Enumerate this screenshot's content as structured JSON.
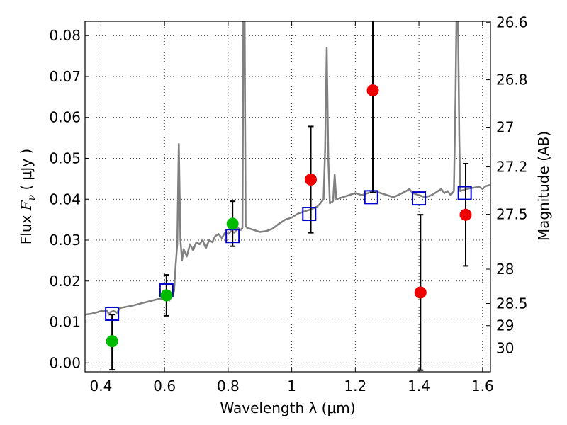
{
  "chart_data": {
    "type": "scatter",
    "xlabel": "Wavelength  λ (μm)",
    "ylabel_left": "Flux  F_ν  ( μJy )",
    "ylabel_right": "Magnitude (AB)",
    "xlim": [
      0.35,
      1.625
    ],
    "ylim": [
      -0.0022,
      0.0835
    ],
    "grid": true,
    "x_ticks": [
      {
        "value": 0.4,
        "label": "0.4"
      },
      {
        "value": 0.6,
        "label": "0.6"
      },
      {
        "value": 0.8,
        "label": "0.8"
      },
      {
        "value": 1.0,
        "label": "1"
      },
      {
        "value": 1.2,
        "label": "1.2"
      },
      {
        "value": 1.4,
        "label": "1.4"
      },
      {
        "value": 1.6,
        "label": "1.6"
      }
    ],
    "y_ticks": [
      {
        "value": 0.0,
        "label": "0.00"
      },
      {
        "value": 0.01,
        "label": "0.01"
      },
      {
        "value": 0.02,
        "label": "0.02"
      },
      {
        "value": 0.03,
        "label": "0.03"
      },
      {
        "value": 0.04,
        "label": "0.04"
      },
      {
        "value": 0.05,
        "label": "0.05"
      },
      {
        "value": 0.06,
        "label": "0.06"
      },
      {
        "value": 0.07,
        "label": "0.07"
      },
      {
        "value": 0.08,
        "label": "0.08"
      }
    ],
    "mag_ticks": [
      {
        "label": "26.6",
        "flux": 0.0832
      },
      {
        "label": "26.8",
        "flux": 0.0692
      },
      {
        "label": "27",
        "flux": 0.0576
      },
      {
        "label": "27.2",
        "flux": 0.0479
      },
      {
        "label": "27.5",
        "flux": 0.0363
      },
      {
        "label": "28",
        "flux": 0.0229
      },
      {
        "label": "28.5",
        "flux": 0.0145
      },
      {
        "label": "29",
        "flux": 0.0091
      },
      {
        "label": "30",
        "flux": 0.0036
      }
    ],
    "model_spectrum": {
      "color": "#808080",
      "points": [
        [
          0.35,
          0.0118
        ],
        [
          0.37,
          0.012
        ],
        [
          0.38,
          0.0122
        ],
        [
          0.39,
          0.0124
        ],
        [
          0.395,
          0.0126
        ],
        [
          0.4,
          0.0126
        ],
        [
          0.41,
          0.0127
        ],
        [
          0.42,
          0.0127
        ],
        [
          0.425,
          0.0118
        ],
        [
          0.43,
          0.0124
        ],
        [
          0.44,
          0.0127
        ],
        [
          0.45,
          0.0122
        ],
        [
          0.46,
          0.0134
        ],
        [
          0.48,
          0.0137
        ],
        [
          0.5,
          0.014
        ],
        [
          0.52,
          0.0144
        ],
        [
          0.54,
          0.0148
        ],
        [
          0.56,
          0.0152
        ],
        [
          0.58,
          0.0156
        ],
        [
          0.6,
          0.0158
        ],
        [
          0.61,
          0.0157
        ],
        [
          0.615,
          0.0152
        ],
        [
          0.62,
          0.0163
        ],
        [
          0.625,
          0.0168
        ],
        [
          0.63,
          0.0175
        ],
        [
          0.635,
          0.024
        ],
        [
          0.64,
          0.029
        ],
        [
          0.645,
          0.0535
        ],
        [
          0.65,
          0.03
        ],
        [
          0.655,
          0.025
        ],
        [
          0.66,
          0.0278
        ],
        [
          0.67,
          0.026
        ],
        [
          0.68,
          0.029
        ],
        [
          0.69,
          0.0275
        ],
        [
          0.7,
          0.0295
        ],
        [
          0.71,
          0.029
        ],
        [
          0.72,
          0.03
        ],
        [
          0.73,
          0.028
        ],
        [
          0.74,
          0.03
        ],
        [
          0.75,
          0.0295
        ],
        [
          0.76,
          0.031
        ],
        [
          0.77,
          0.0315
        ],
        [
          0.78,
          0.0305
        ],
        [
          0.79,
          0.0318
        ],
        [
          0.8,
          0.0315
        ],
        [
          0.81,
          0.0322
        ],
        [
          0.82,
          0.0318
        ],
        [
          0.83,
          0.033
        ],
        [
          0.84,
          0.0325
        ],
        [
          0.845,
          0.033
        ],
        [
          0.848,
          0.084
        ],
        [
          0.852,
          0.084
        ],
        [
          0.855,
          0.0335
        ],
        [
          0.86,
          0.033
        ],
        [
          0.88,
          0.0325
        ],
        [
          0.9,
          0.032
        ],
        [
          0.92,
          0.0322
        ],
        [
          0.94,
          0.0328
        ],
        [
          0.96,
          0.034
        ],
        [
          0.98,
          0.035
        ],
        [
          1.0,
          0.0355
        ],
        [
          1.02,
          0.0365
        ],
        [
          1.04,
          0.037
        ],
        [
          1.06,
          0.0375
        ],
        [
          1.08,
          0.0382
        ],
        [
          1.09,
          0.039
        ],
        [
          1.1,
          0.04
        ],
        [
          1.105,
          0.052
        ],
        [
          1.11,
          0.077
        ],
        [
          1.115,
          0.05
        ],
        [
          1.12,
          0.039
        ],
        [
          1.13,
          0.0395
        ],
        [
          1.135,
          0.046
        ],
        [
          1.14,
          0.04
        ],
        [
          1.16,
          0.0405
        ],
        [
          1.18,
          0.041
        ],
        [
          1.2,
          0.0415
        ],
        [
          1.22,
          0.041
        ],
        [
          1.24,
          0.0415
        ],
        [
          1.26,
          0.042
        ],
        [
          1.28,
          0.0415
        ],
        [
          1.3,
          0.041
        ],
        [
          1.32,
          0.0405
        ],
        [
          1.34,
          0.0412
        ],
        [
          1.36,
          0.042
        ],
        [
          1.37,
          0.0425
        ],
        [
          1.38,
          0.0415
        ],
        [
          1.4,
          0.041
        ],
        [
          1.42,
          0.0405
        ],
        [
          1.44,
          0.041
        ],
        [
          1.46,
          0.042
        ],
        [
          1.47,
          0.0425
        ],
        [
          1.48,
          0.0415
        ],
        [
          1.49,
          0.042
        ],
        [
          1.5,
          0.041
        ],
        [
          1.51,
          0.042
        ],
        [
          1.515,
          0.065
        ],
        [
          1.518,
          0.084
        ],
        [
          1.523,
          0.084
        ],
        [
          1.527,
          0.055
        ],
        [
          1.53,
          0.042
        ],
        [
          1.55,
          0.0425
        ],
        [
          1.57,
          0.0428
        ],
        [
          1.59,
          0.043
        ],
        [
          1.6,
          0.0425
        ],
        [
          1.61,
          0.0432
        ],
        [
          1.625,
          0.0435
        ]
      ]
    },
    "model_photometry": {
      "marker": "open-square",
      "color": "#0000cc",
      "points": [
        {
          "x": 0.435,
          "y": 0.012
        },
        {
          "x": 0.606,
          "y": 0.0177
        },
        {
          "x": 0.814,
          "y": 0.031
        },
        {
          "x": 1.055,
          "y": 0.0364
        },
        {
          "x": 1.25,
          "y": 0.0405
        },
        {
          "x": 1.4,
          "y": 0.0402
        },
        {
          "x": 1.544,
          "y": 0.0415
        }
      ]
    },
    "detections": {
      "marker": "filled-circle",
      "color": "#00bb00",
      "points": [
        {
          "x": 0.435,
          "y": 0.0053,
          "err_low": 0.007,
          "err_high": 0.0065
        },
        {
          "x": 0.606,
          "y": 0.0165,
          "err_low": 0.005,
          "err_high": 0.005
        },
        {
          "x": 0.814,
          "y": 0.034,
          "err_low": 0.0055,
          "err_high": 0.0055
        }
      ]
    },
    "upper_limits": {
      "marker": "filled-circle",
      "color": "#ee0000",
      "points": [
        {
          "x": 1.06,
          "y": 0.0448,
          "err_low": 0.013,
          "err_high": 0.013
        },
        {
          "x": 1.255,
          "y": 0.0666,
          "err_low": 0.025,
          "err_high": 0.018
        },
        {
          "x": 1.405,
          "y": 0.0172,
          "err_low": 0.019,
          "err_high": 0.019
        },
        {
          "x": 1.547,
          "y": 0.0362,
          "err_low": 0.0125,
          "err_high": 0.0125
        }
      ]
    }
  }
}
